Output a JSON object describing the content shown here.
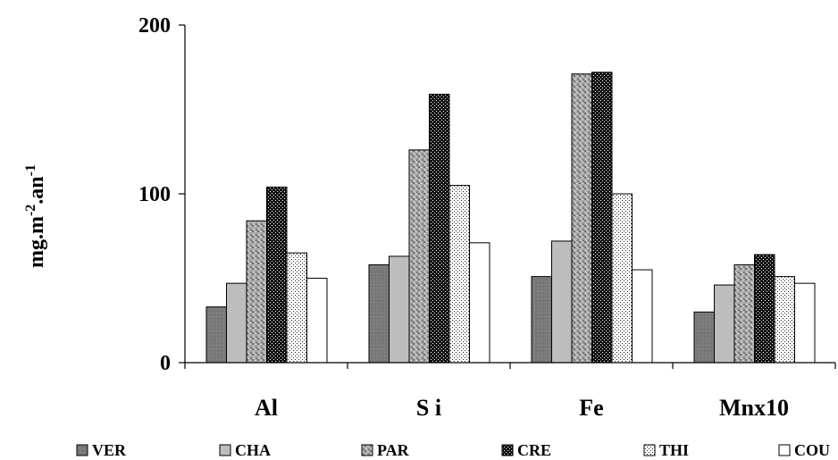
{
  "chart_data": {
    "type": "bar",
    "title": "",
    "xlabel": "",
    "ylabel": "mg.m",
    "ylabel_sup1": "-2",
    "ylabel_mid": ".an",
    "ylabel_sup2": "-1",
    "ylim": [
      0,
      200
    ],
    "yticks": [
      "0",
      "100",
      "200"
    ],
    "categories": [
      "Al",
      "S i",
      "Fe",
      "Mnx10"
    ],
    "grid": false,
    "legend_position": "bottom",
    "series": [
      {
        "name": "VER",
        "values": [
          33,
          58,
          51,
          30
        ]
      },
      {
        "name": "CHA",
        "values": [
          47,
          63,
          72,
          46
        ]
      },
      {
        "name": "PAR",
        "values": [
          84,
          126,
          171,
          58
        ]
      },
      {
        "name": "CRE",
        "values": [
          104,
          159,
          172,
          64
        ]
      },
      {
        "name": "THI",
        "values": [
          65,
          105,
          100,
          51
        ]
      },
      {
        "name": "COU",
        "values": [
          50,
          71,
          55,
          47
        ]
      }
    ]
  }
}
